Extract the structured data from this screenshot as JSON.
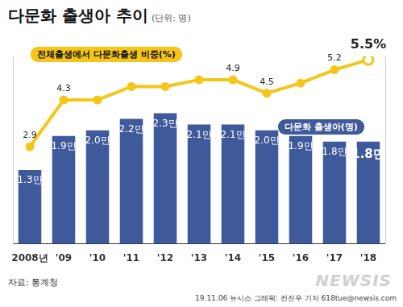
{
  "chart_data": {
    "type": "bar",
    "title": "다문화 출생아 추이",
    "subtitle": "(단위: 명)",
    "source": "자료: 통계청",
    "credit": "19.11.06 뉴시스 그래픽: 전진우 기자 618tue@newsis.com",
    "watermark": "NEWSIS",
    "categories": [
      "2008년",
      "'09",
      "'10",
      "'11",
      "'12",
      "'13",
      "'14",
      "'15",
      "'16",
      "'17",
      "'18"
    ],
    "series": [
      {
        "name": "다문화 출생아(명)",
        "type": "bar",
        "color": "#3f5a9b",
        "values": [
          1.3,
          1.9,
          2.0,
          2.2,
          2.3,
          2.1,
          2.1,
          2.0,
          1.9,
          1.8,
          1.8
        ],
        "value_labels": [
          "1.3만",
          "1.9만",
          "2.0만",
          "2.2만",
          "2.3만",
          "2.1만",
          "2.1만",
          "2.0만",
          "1.9만",
          "1.8만",
          "1.8만"
        ]
      },
      {
        "name": "전체출생에서 다문화출생 비중(%)",
        "type": "line",
        "axis": "y2",
        "color": "#f5c518",
        "marker": "circle",
        "values": [
          2.9,
          4.3,
          4.3,
          4.7,
          4.7,
          4.9,
          4.9,
          4.5,
          4.8,
          5.2,
          5.5
        ],
        "value_labels": [
          "2.9",
          "4.3",
          null,
          null,
          null,
          null,
          "4.9",
          "4.5",
          null,
          "5.2",
          "5.5%"
        ]
      }
    ],
    "ylim": [
      0,
      3.3
    ],
    "y2lim": [
      0,
      5.6
    ],
    "grid": false,
    "data_labels": true,
    "tick_labels": "x"
  }
}
